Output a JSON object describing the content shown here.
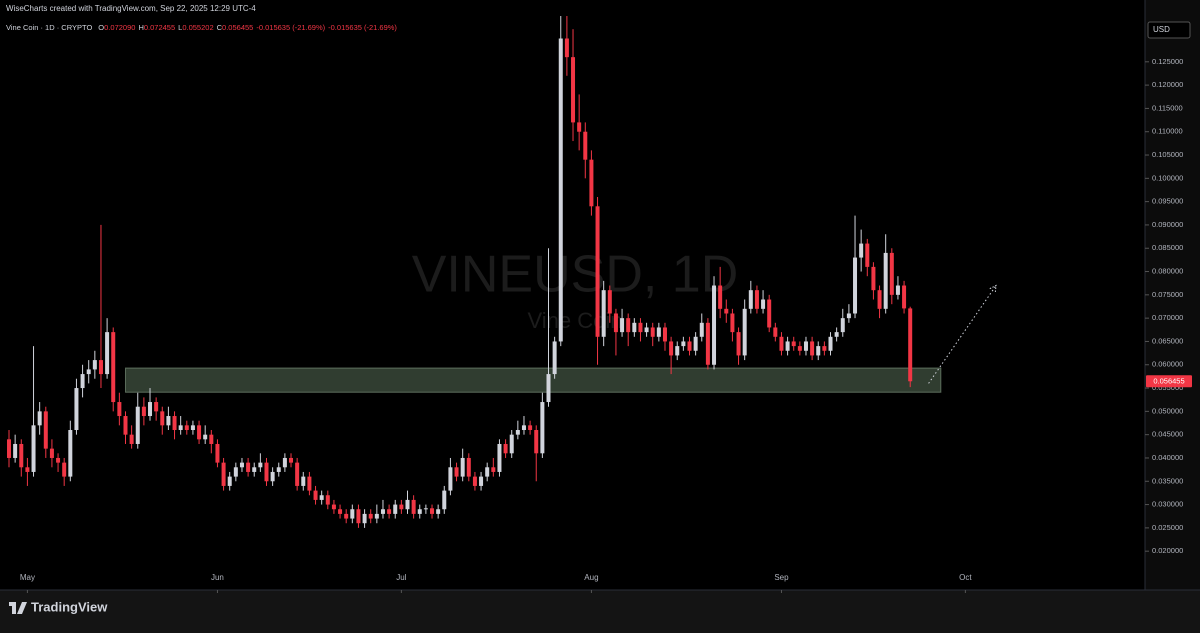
{
  "header": {
    "credit": "WiseCharts created with TradingView.com, Sep 22, 2025 12:29 UTC-4",
    "symbol": "Vine Coin · 1D · CRYPTO",
    "ohlc_legend": [
      {
        "label": "O",
        "value": "0.072090"
      },
      {
        "label": "H",
        "value": "0.072455"
      },
      {
        "label": "L",
        "value": "0.055202"
      },
      {
        "label": "C",
        "value": "0.056455"
      }
    ],
    "change": [
      "-0.015635 (-21.69%)",
      "-0.015635 (-21.69%)"
    ],
    "currency": "USD",
    "brand": "TradingView"
  },
  "chart_data": {
    "type": "candlestick",
    "watermark": "VINEUSD, 1D",
    "watermark_sub": "Vine Coin",
    "up_color": "#d1d4dc",
    "down_color": "#f23645",
    "ylim": [
      0.0121,
      0.1344
    ],
    "yticks": [
      {
        "value": 0.02,
        "label": "0.020000"
      },
      {
        "value": 0.025,
        "label": "0.025000"
      },
      {
        "value": 0.03,
        "label": "0.030000"
      },
      {
        "value": 0.035,
        "label": "0.035000"
      },
      {
        "value": 0.04,
        "label": "0.040000"
      },
      {
        "value": 0.045,
        "label": "0.045000"
      },
      {
        "value": 0.05,
        "label": "0.050000"
      },
      {
        "value": 0.055,
        "label": "0.055000"
      },
      {
        "value": 0.06,
        "label": "0.060000"
      },
      {
        "value": 0.065,
        "label": "0.065000"
      },
      {
        "value": 0.07,
        "label": "0.070000"
      },
      {
        "value": 0.075,
        "label": "0.075000"
      },
      {
        "value": 0.08,
        "label": "0.080000"
      },
      {
        "value": 0.085,
        "label": "0.085000"
      },
      {
        "value": 0.09,
        "label": "0.090000"
      },
      {
        "value": 0.095,
        "label": "0.095000"
      },
      {
        "value": 0.1,
        "label": "0.100000"
      },
      {
        "value": 0.105,
        "label": "0.105000"
      },
      {
        "value": 0.11,
        "label": "0.110000"
      },
      {
        "value": 0.115,
        "label": "0.115000"
      },
      {
        "value": 0.12,
        "label": "0.120000"
      },
      {
        "value": 0.125,
        "label": "0.125000"
      }
    ],
    "xlim": [
      -1.47,
      185.3
    ],
    "xticks": [
      {
        "value": 3,
        "label": "May"
      },
      {
        "value": 34,
        "label": "Jun"
      },
      {
        "value": 64,
        "label": "Jul"
      },
      {
        "value": 95,
        "label": "Aug"
      },
      {
        "value": 126,
        "label": "Sep"
      },
      {
        "value": 156,
        "label": "Oct"
      }
    ],
    "support_zone": {
      "from": 19,
      "to": 152,
      "low": 0.0541,
      "high": 0.0593
    },
    "projection": {
      "x": [
        150,
        161
      ],
      "y": [
        0.056,
        0.077
      ]
    },
    "ohlc": [
      [
        0.044,
        0.046,
        0.038,
        0.04
      ],
      [
        0.04,
        0.045,
        0.039,
        0.043
      ],
      [
        0.043,
        0.044,
        0.036,
        0.038
      ],
      [
        0.038,
        0.04,
        0.034,
        0.037
      ],
      [
        0.037,
        0.064,
        0.036,
        0.047
      ],
      [
        0.047,
        0.052,
        0.045,
        0.05
      ],
      [
        0.05,
        0.051,
        0.04,
        0.042
      ],
      [
        0.042,
        0.044,
        0.038,
        0.04
      ],
      [
        0.04,
        0.041,
        0.037,
        0.039
      ],
      [
        0.039,
        0.04,
        0.034,
        0.036
      ],
      [
        0.036,
        0.048,
        0.035,
        0.046
      ],
      [
        0.046,
        0.057,
        0.045,
        0.055
      ],
      [
        0.055,
        0.06,
        0.053,
        0.058
      ],
      [
        0.058,
        0.061,
        0.056,
        0.059
      ],
      [
        0.059,
        0.063,
        0.057,
        0.061
      ],
      [
        0.061,
        0.09,
        0.055,
        0.058
      ],
      [
        0.058,
        0.07,
        0.057,
        0.067
      ],
      [
        0.067,
        0.068,
        0.05,
        0.052
      ],
      [
        0.052,
        0.054,
        0.047,
        0.049
      ],
      [
        0.049,
        0.05,
        0.043,
        0.045
      ],
      [
        0.045,
        0.047,
        0.042,
        0.043
      ],
      [
        0.043,
        0.054,
        0.042,
        0.051
      ],
      [
        0.051,
        0.053,
        0.047,
        0.049
      ],
      [
        0.049,
        0.055,
        0.048,
        0.052
      ],
      [
        0.052,
        0.053,
        0.048,
        0.05
      ],
      [
        0.05,
        0.051,
        0.045,
        0.047
      ],
      [
        0.047,
        0.051,
        0.046,
        0.049
      ],
      [
        0.049,
        0.05,
        0.044,
        0.046
      ],
      [
        0.046,
        0.049,
        0.045,
        0.047
      ],
      [
        0.047,
        0.048,
        0.045,
        0.046
      ],
      [
        0.046,
        0.048,
        0.045,
        0.047
      ],
      [
        0.047,
        0.048,
        0.043,
        0.044
      ],
      [
        0.044,
        0.047,
        0.043,
        0.045
      ],
      [
        0.045,
        0.046,
        0.041,
        0.043
      ],
      [
        0.043,
        0.044,
        0.038,
        0.039
      ],
      [
        0.039,
        0.04,
        0.033,
        0.034
      ],
      [
        0.034,
        0.037,
        0.033,
        0.036
      ],
      [
        0.036,
        0.039,
        0.035,
        0.038
      ],
      [
        0.038,
        0.04,
        0.037,
        0.039
      ],
      [
        0.039,
        0.04,
        0.036,
        0.037
      ],
      [
        0.037,
        0.039,
        0.036,
        0.038
      ],
      [
        0.038,
        0.041,
        0.037,
        0.039
      ],
      [
        0.039,
        0.04,
        0.034,
        0.035
      ],
      [
        0.035,
        0.038,
        0.034,
        0.037
      ],
      [
        0.037,
        0.039,
        0.036,
        0.038
      ],
      [
        0.038,
        0.041,
        0.037,
        0.04
      ],
      [
        0.04,
        0.041,
        0.038,
        0.039
      ],
      [
        0.039,
        0.04,
        0.033,
        0.034
      ],
      [
        0.034,
        0.037,
        0.033,
        0.036
      ],
      [
        0.036,
        0.037,
        0.032,
        0.033
      ],
      [
        0.033,
        0.034,
        0.03,
        0.031
      ],
      [
        0.031,
        0.033,
        0.03,
        0.032
      ],
      [
        0.032,
        0.033,
        0.029,
        0.03
      ],
      [
        0.03,
        0.031,
        0.028,
        0.029
      ],
      [
        0.029,
        0.03,
        0.027,
        0.028
      ],
      [
        0.028,
        0.029,
        0.026,
        0.027
      ],
      [
        0.027,
        0.03,
        0.026,
        0.029
      ],
      [
        0.029,
        0.03,
        0.025,
        0.026
      ],
      [
        0.026,
        0.029,
        0.025,
        0.028
      ],
      [
        0.028,
        0.029,
        0.026,
        0.027
      ],
      [
        0.027,
        0.03,
        0.026,
        0.028
      ],
      [
        0.028,
        0.031,
        0.027,
        0.029
      ],
      [
        0.029,
        0.03,
        0.027,
        0.028
      ],
      [
        0.028,
        0.031,
        0.027,
        0.03
      ],
      [
        0.03,
        0.031,
        0.028,
        0.029
      ],
      [
        0.029,
        0.033,
        0.028,
        0.031
      ],
      [
        0.031,
        0.032,
        0.027,
        0.028
      ],
      [
        0.028,
        0.03,
        0.027,
        0.029
      ],
      [
        0.029,
        0.03,
        0.028,
        0.0292
      ],
      [
        0.0292,
        0.03,
        0.027,
        0.028
      ],
      [
        0.028,
        0.03,
        0.027,
        0.029
      ],
      [
        0.029,
        0.034,
        0.028,
        0.033
      ],
      [
        0.033,
        0.04,
        0.032,
        0.038
      ],
      [
        0.038,
        0.039,
        0.035,
        0.036
      ],
      [
        0.036,
        0.042,
        0.035,
        0.04
      ],
      [
        0.04,
        0.041,
        0.035,
        0.036
      ],
      [
        0.036,
        0.037,
        0.033,
        0.034
      ],
      [
        0.034,
        0.037,
        0.033,
        0.036
      ],
      [
        0.036,
        0.039,
        0.035,
        0.038
      ],
      [
        0.038,
        0.04,
        0.036,
        0.037
      ],
      [
        0.037,
        0.044,
        0.036,
        0.043
      ],
      [
        0.043,
        0.044,
        0.04,
        0.041
      ],
      [
        0.041,
        0.046,
        0.04,
        0.045
      ],
      [
        0.045,
        0.048,
        0.044,
        0.046
      ],
      [
        0.046,
        0.049,
        0.045,
        0.047
      ],
      [
        0.047,
        0.048,
        0.045,
        0.046
      ],
      [
        0.046,
        0.047,
        0.035,
        0.041
      ],
      [
        0.041,
        0.054,
        0.04,
        0.052
      ],
      [
        0.052,
        0.085,
        0.051,
        0.058
      ],
      [
        0.058,
        0.066,
        0.057,
        0.065
      ],
      [
        0.065,
        0.14,
        0.064,
        0.13
      ],
      [
        0.13,
        0.14,
        0.122,
        0.126
      ],
      [
        0.126,
        0.132,
        0.108,
        0.112
      ],
      [
        0.112,
        0.118,
        0.106,
        0.11
      ],
      [
        0.11,
        0.112,
        0.1,
        0.104
      ],
      [
        0.104,
        0.106,
        0.092,
        0.094
      ],
      [
        0.094,
        0.096,
        0.06,
        0.066
      ],
      [
        0.066,
        0.078,
        0.064,
        0.076
      ],
      [
        0.076,
        0.077,
        0.069,
        0.071
      ],
      [
        0.071,
        0.072,
        0.062,
        0.067
      ],
      [
        0.067,
        0.072,
        0.066,
        0.07
      ],
      [
        0.07,
        0.071,
        0.064,
        0.067
      ],
      [
        0.067,
        0.07,
        0.066,
        0.069
      ],
      [
        0.069,
        0.07,
        0.065,
        0.067
      ],
      [
        0.067,
        0.069,
        0.066,
        0.068
      ],
      [
        0.068,
        0.069,
        0.064,
        0.066
      ],
      [
        0.066,
        0.069,
        0.065,
        0.068
      ],
      [
        0.068,
        0.069,
        0.063,
        0.065
      ],
      [
        0.065,
        0.066,
        0.058,
        0.062
      ],
      [
        0.062,
        0.065,
        0.061,
        0.064
      ],
      [
        0.064,
        0.066,
        0.063,
        0.065
      ],
      [
        0.065,
        0.066,
        0.062,
        0.063
      ],
      [
        0.063,
        0.067,
        0.062,
        0.066
      ],
      [
        0.066,
        0.071,
        0.065,
        0.069
      ],
      [
        0.069,
        0.07,
        0.059,
        0.06
      ],
      [
        0.06,
        0.079,
        0.059,
        0.077
      ],
      [
        0.077,
        0.081,
        0.07,
        0.072
      ],
      [
        0.072,
        0.074,
        0.069,
        0.071
      ],
      [
        0.071,
        0.072,
        0.065,
        0.067
      ],
      [
        0.067,
        0.068,
        0.06,
        0.062
      ],
      [
        0.062,
        0.074,
        0.061,
        0.072
      ],
      [
        0.072,
        0.078,
        0.071,
        0.076
      ],
      [
        0.076,
        0.077,
        0.071,
        0.072
      ],
      [
        0.072,
        0.076,
        0.071,
        0.074
      ],
      [
        0.074,
        0.075,
        0.067,
        0.068
      ],
      [
        0.068,
        0.069,
        0.065,
        0.066
      ],
      [
        0.066,
        0.067,
        0.062,
        0.063
      ],
      [
        0.063,
        0.066,
        0.062,
        0.065
      ],
      [
        0.065,
        0.066,
        0.063,
        0.064
      ],
      [
        0.064,
        0.065,
        0.062,
        0.063
      ],
      [
        0.063,
        0.066,
        0.062,
        0.065
      ],
      [
        0.065,
        0.066,
        0.061,
        0.062
      ],
      [
        0.062,
        0.065,
        0.061,
        0.064
      ],
      [
        0.064,
        0.065,
        0.062,
        0.063
      ],
      [
        0.063,
        0.067,
        0.062,
        0.066
      ],
      [
        0.066,
        0.068,
        0.065,
        0.067
      ],
      [
        0.067,
        0.072,
        0.066,
        0.07
      ],
      [
        0.07,
        0.073,
        0.069,
        0.071
      ],
      [
        0.071,
        0.092,
        0.07,
        0.083
      ],
      [
        0.083,
        0.089,
        0.08,
        0.086
      ],
      [
        0.086,
        0.087,
        0.079,
        0.081
      ],
      [
        0.081,
        0.082,
        0.074,
        0.076
      ],
      [
        0.076,
        0.077,
        0.07,
        0.072
      ],
      [
        0.072,
        0.088,
        0.071,
        0.084
      ],
      [
        0.084,
        0.085,
        0.073,
        0.075
      ],
      [
        0.075,
        0.079,
        0.074,
        0.077
      ],
      [
        0.077,
        0.078,
        0.071,
        0.07209
      ],
      [
        0.07209,
        0.072455,
        0.055202,
        0.056455
      ]
    ]
  }
}
